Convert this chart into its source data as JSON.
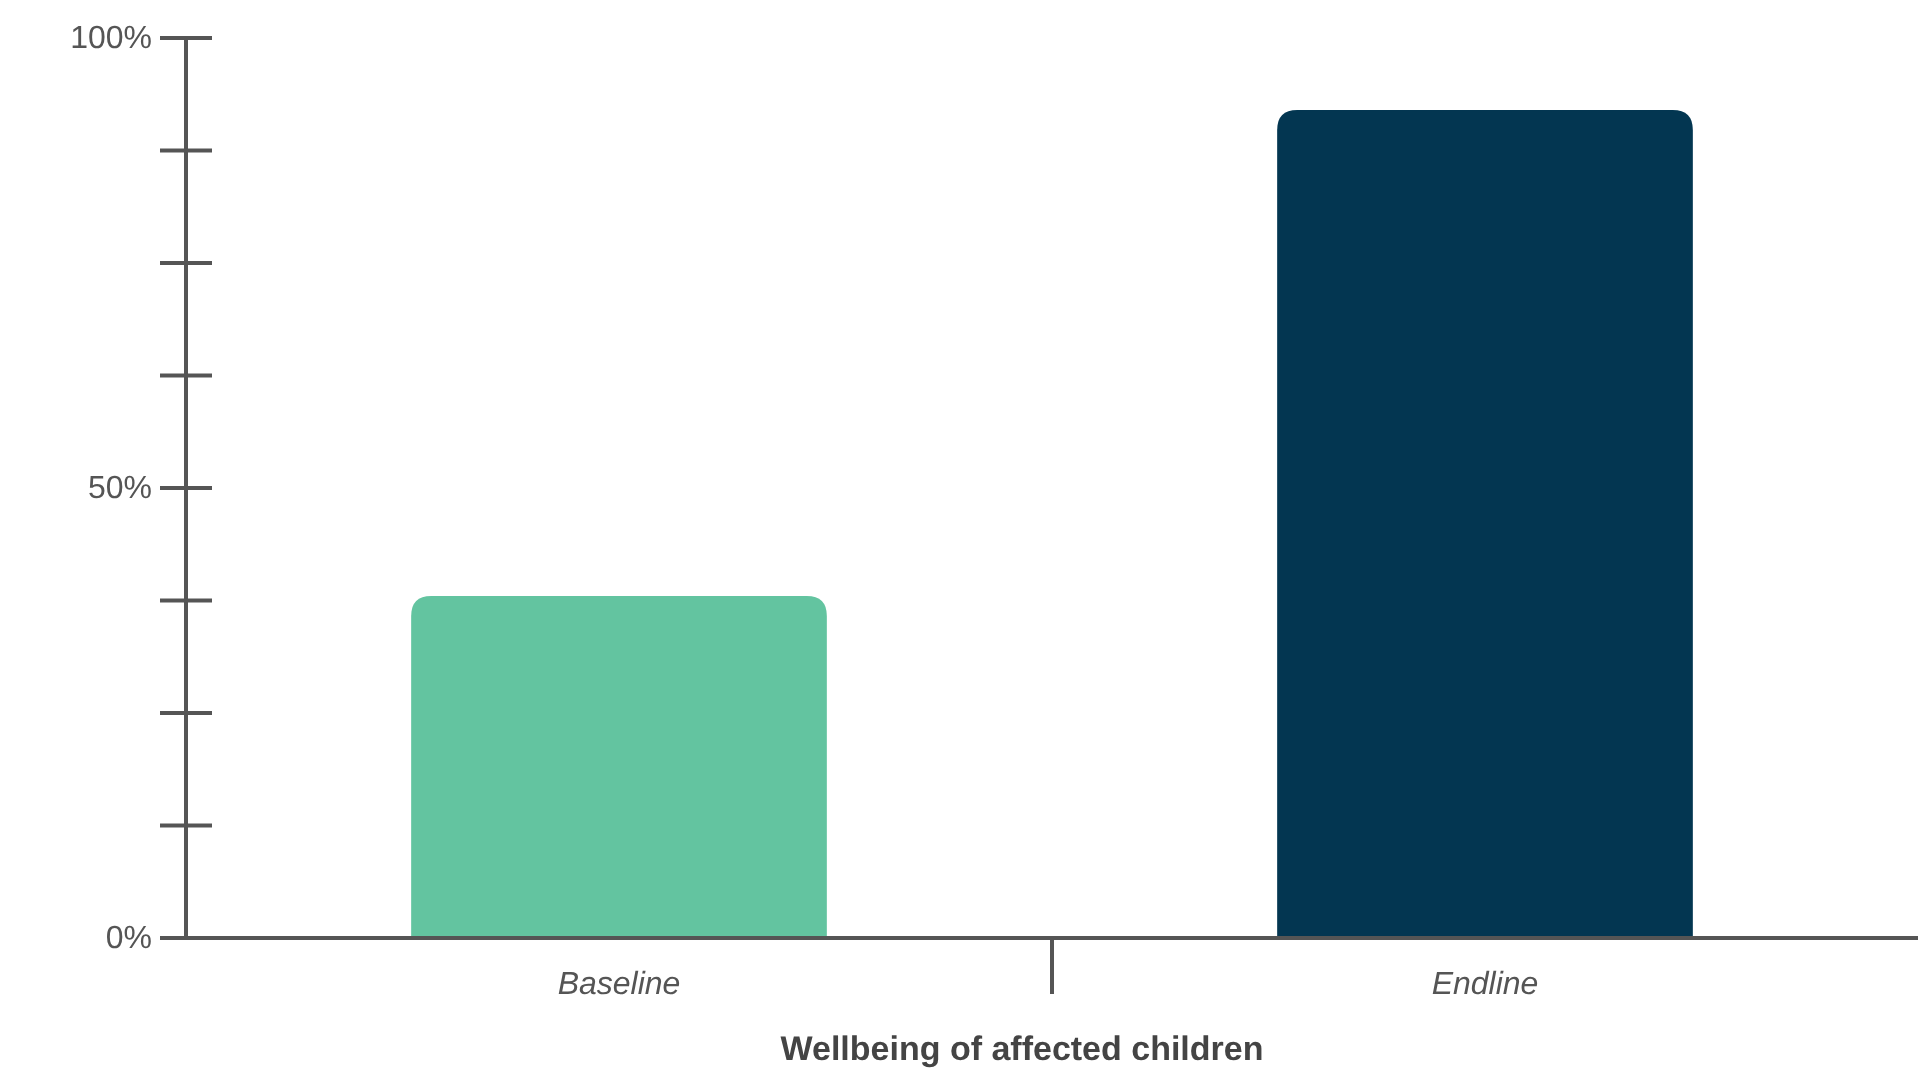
{
  "chart_data": {
    "type": "bar",
    "xlabel": "Wellbeing of affected children",
    "categories": [
      "Baseline",
      "Endline"
    ],
    "values": [
      38,
      92
    ],
    "colors": [
      "#63c4a0",
      "#033651"
    ],
    "ylim": [
      0,
      100
    ],
    "yticks": [
      {
        "value": 0,
        "label": "0%"
      },
      {
        "value": 12.5,
        "label": null
      },
      {
        "value": 25,
        "label": null
      },
      {
        "value": 37.5,
        "label": null
      },
      {
        "value": 50,
        "label": "50%"
      },
      {
        "value": 62.5,
        "label": null
      },
      {
        "value": 75,
        "label": null
      },
      {
        "value": 87.5,
        "label": null
      },
      {
        "value": 100,
        "label": "100%"
      }
    ],
    "grid": false
  }
}
